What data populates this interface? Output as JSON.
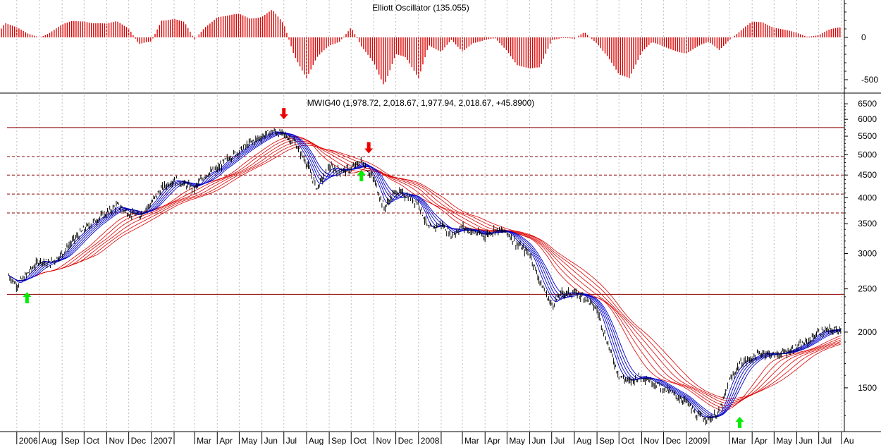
{
  "chart_data": [
    {
      "type": "bar",
      "title": "Elliott Oscillator (135.055)",
      "yticks": [
        0,
        -500
      ],
      "ylim": [
        -650,
        500
      ],
      "bar_color": "#dd0000",
      "series": [
        {
          "x": [
            "2006-06-01",
            "2006-06-15",
            "2006-07-01",
            "2006-07-15",
            "2006-08-01",
            "2006-08-15",
            "2006-09-01",
            "2006-09-15",
            "2006-10-01",
            "2006-10-15",
            "2006-11-01",
            "2006-11-15",
            "2006-12-01",
            "2006-12-15",
            "2007-01-01",
            "2007-01-15",
            "2007-02-01",
            "2007-02-15",
            "2007-03-01",
            "2007-03-15",
            "2007-04-01",
            "2007-04-15",
            "2007-05-01",
            "2007-05-15",
            "2007-06-01",
            "2007-06-15",
            "2007-07-01",
            "2007-07-15",
            "2007-08-01",
            "2007-08-15",
            "2007-09-01",
            "2007-09-15",
            "2007-10-01",
            "2007-10-15",
            "2007-11-01",
            "2007-11-15",
            "2007-12-01",
            "2007-12-15",
            "2008-01-01",
            "2008-01-15",
            "2008-02-01",
            "2008-02-15",
            "2008-03-01",
            "2008-03-15",
            "2008-04-01",
            "2008-04-15",
            "2008-05-01",
            "2008-05-15",
            "2008-06-01",
            "2008-06-15",
            "2008-07-01",
            "2008-07-15",
            "2008-08-01",
            "2008-08-15",
            "2008-09-01",
            "2008-09-15",
            "2008-10-01",
            "2008-10-15",
            "2008-11-01",
            "2008-11-15",
            "2008-12-01",
            "2008-12-15",
            "2009-01-01",
            "2009-01-15",
            "2009-02-01",
            "2009-02-15",
            "2009-03-01",
            "2009-03-15",
            "2009-04-01",
            "2009-04-15",
            "2009-05-01",
            "2009-05-15",
            "2009-06-01",
            "2009-06-15",
            "2009-07-01",
            "2009-07-15",
            "2009-08-01"
          ],
          "values": [
            0,
            180,
            110,
            40,
            10,
            60,
            140,
            190,
            200,
            170,
            150,
            190,
            120,
            -80,
            -60,
            200,
            230,
            180,
            -40,
            120,
            250,
            250,
            270,
            230,
            250,
            320,
            150,
            -200,
            -480,
            -250,
            -100,
            -40,
            120,
            -120,
            -300,
            -560,
            -200,
            -250,
            -480,
            -80,
            -180,
            -40,
            -160,
            -60,
            -40,
            -20,
            -150,
            -320,
            -380,
            -360,
            -20,
            0,
            -30,
            60,
            -60,
            -220,
            -450,
            -480,
            -160,
            -60,
            -120,
            -150,
            -180,
            -120,
            -60,
            -140,
            -20,
            60,
            180,
            190,
            120,
            80,
            50,
            20,
            30,
            80,
            120
          ],
          "name": ""
        }
      ]
    },
    {
      "type": "line",
      "title": "MWIG40 (1,978.72, 2,018.67, 1,977.94, 2,018.67, +45.8900)",
      "yscale": "log",
      "yticks": [
        1500,
        2000,
        2500,
        3000,
        3500,
        4000,
        4500,
        5000,
        5500,
        6000,
        6500
      ],
      "ylim": [
        1250,
        6600
      ],
      "xlabels": [
        "2006",
        "Aug",
        "Sep",
        "Oct",
        "Nov",
        "Dec",
        "2007",
        "Mar",
        "Apr",
        "May",
        "Jun",
        "Jul",
        "Aug",
        "Sep",
        "Oct",
        "Nov",
        "Dec",
        "2008",
        "Mar",
        "Apr",
        "May",
        "Jun",
        "Jul",
        "Aug",
        "Sep",
        "Oct",
        "Nov",
        "Dec",
        "2009",
        "Mar",
        "Apr",
        "May",
        "Jun",
        "Jul",
        "Au"
      ],
      "hlines": [
        {
          "value": 5750,
          "style": "solid",
          "color": "#8b0000"
        },
        {
          "value": 4950,
          "style": "dashed",
          "color": "#8b0000"
        },
        {
          "value": 4500,
          "style": "dashed",
          "color": "#8b0000"
        },
        {
          "value": 4080,
          "style": "dashed",
          "color": "#8b0000"
        },
        {
          "value": 3700,
          "style": "dashed",
          "color": "#8b0000"
        },
        {
          "value": 2430,
          "style": "solid",
          "color": "#8b0000"
        }
      ],
      "series": [
        {
          "name": "",
          "color": "#000000",
          "x": [
            "2006-06-20",
            "2006-07-01",
            "2006-07-15",
            "2006-08-01",
            "2006-08-15",
            "2006-09-01",
            "2006-09-15",
            "2006-10-01",
            "2006-10-15",
            "2006-11-01",
            "2006-11-15",
            "2006-12-01",
            "2006-12-15",
            "2007-01-01",
            "2007-01-15",
            "2007-02-01",
            "2007-02-15",
            "2007-03-01",
            "2007-03-15",
            "2007-04-01",
            "2007-04-15",
            "2007-05-01",
            "2007-05-15",
            "2007-06-01",
            "2007-06-15",
            "2007-07-01",
            "2007-07-15",
            "2007-08-01",
            "2007-08-15",
            "2007-09-01",
            "2007-09-15",
            "2007-10-01",
            "2007-10-15",
            "2007-11-01",
            "2007-11-15",
            "2007-12-01",
            "2007-12-15",
            "2008-01-01",
            "2008-01-15",
            "2008-02-01",
            "2008-02-15",
            "2008-03-01",
            "2008-03-15",
            "2008-04-01",
            "2008-04-15",
            "2008-05-01",
            "2008-05-15",
            "2008-06-01",
            "2008-06-15",
            "2008-07-01",
            "2008-07-15",
            "2008-08-01",
            "2008-08-15",
            "2008-09-01",
            "2008-09-15",
            "2008-10-01",
            "2008-10-15",
            "2008-11-01",
            "2008-11-15",
            "2008-12-01",
            "2008-12-15",
            "2009-01-01",
            "2009-01-15",
            "2009-02-01",
            "2009-02-15",
            "2009-03-01",
            "2009-03-15",
            "2009-04-01",
            "2009-04-15",
            "2009-05-01",
            "2009-05-15",
            "2009-06-01",
            "2009-06-15",
            "2009-07-01",
            "2009-07-15",
            "2009-08-01"
          ],
          "values": [
            2680,
            2550,
            2700,
            2900,
            2850,
            3000,
            3200,
            3400,
            3550,
            3700,
            3850,
            3700,
            3650,
            3900,
            4200,
            4400,
            4300,
            4200,
            4500,
            4650,
            4900,
            5100,
            5300,
            5500,
            5650,
            5550,
            5350,
            4800,
            4200,
            4700,
            4600,
            4650,
            4850,
            4400,
            3800,
            4150,
            4050,
            3900,
            3400,
            3500,
            3300,
            3450,
            3350,
            3300,
            3400,
            3350,
            3150,
            3000,
            2600,
            2300,
            2450,
            2450,
            2400,
            2250,
            1900,
            1600,
            1550,
            1600,
            1550,
            1500,
            1450,
            1400,
            1300,
            1280,
            1320,
            1550,
            1700,
            1750,
            1800,
            1780,
            1800,
            1850,
            1900,
            2000,
            2020,
            2030
          ],
          "marks": "ohlc"
        },
        {
          "name": "",
          "color": "#0000cc",
          "kind": "short_avg_ribbon"
        },
        {
          "name": "",
          "color": "#dd0000",
          "kind": "long_avg_ribbon"
        }
      ],
      "arrows": [
        {
          "x": "2006-07-15",
          "value": 2380,
          "direction": "up",
          "color": "#00ee00"
        },
        {
          "x": "2007-07-01",
          "value": 6200,
          "direction": "down",
          "color": "#ee0000"
        },
        {
          "x": "2007-10-15",
          "value": 4470,
          "direction": "up",
          "color": "#00ee00"
        },
        {
          "x": "2007-10-25",
          "value": 5200,
          "direction": "down",
          "color": "#ee0000"
        },
        {
          "x": "2009-03-15",
          "value": 1250,
          "direction": "up",
          "color": "#00ee00"
        }
      ]
    }
  ]
}
